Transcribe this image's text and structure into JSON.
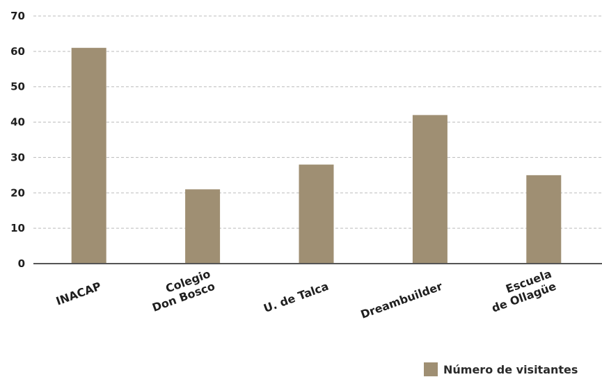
{
  "chart_data": {
    "type": "bar",
    "categories": [
      "INACAP",
      "Colegio Don Bosco",
      "U. de Talca",
      "Dreambuilder",
      "Escuela de Ollagüe"
    ],
    "category_label_lines": [
      [
        "INACAP"
      ],
      [
        "Colegio",
        "Don Bosco"
      ],
      [
        "U. de Talca"
      ],
      [
        "Dreambuilder"
      ],
      [
        "Escuela",
        "de Ollagüe"
      ]
    ],
    "series": [
      {
        "name": "Número de visitantes",
        "values": [
          61,
          21,
          28,
          42,
          25
        ]
      }
    ],
    "ylim": [
      0,
      70
    ],
    "yticks": [
      0,
      10,
      20,
      30,
      40,
      50,
      60,
      70
    ],
    "grid": true,
    "legend_position": "bottom-right",
    "bar_color": "#9f8f73",
    "axis_color": "#555555",
    "grid_color": "#bbbbbb"
  }
}
